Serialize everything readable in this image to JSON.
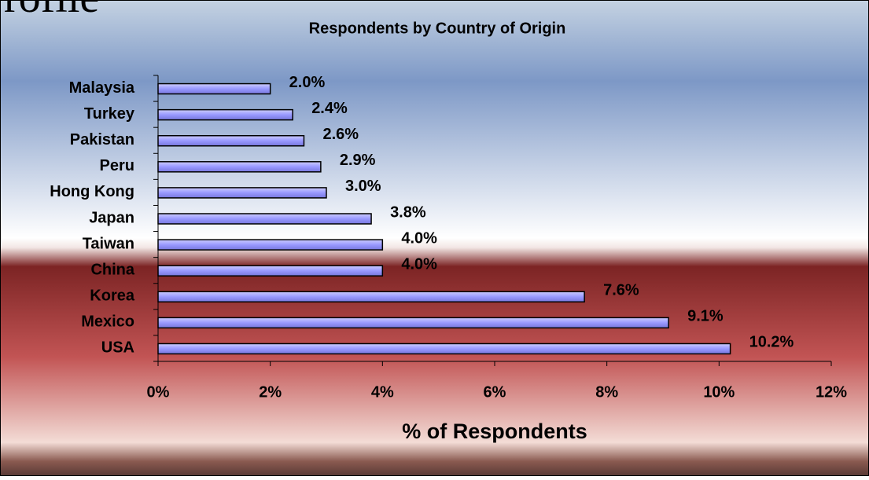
{
  "chart_data": {
    "type": "bar",
    "orientation": "horizontal",
    "annotation": "rofile",
    "title": "Respondents by Country of Origin",
    "x_label": "% of Respondents",
    "categories": [
      "Malaysia",
      "Turkey",
      "Pakistan",
      "Peru",
      "Hong Kong",
      "Japan",
      "Taiwan",
      "China",
      "Korea",
      "Mexico",
      "USA"
    ],
    "values": [
      2.0,
      2.4,
      2.6,
      2.9,
      3.0,
      3.8,
      4.0,
      4.0,
      7.6,
      9.1,
      10.2
    ],
    "value_labels": [
      "2.0%",
      "2.4%",
      "2.6%",
      "2.9%",
      "3.0%",
      "3.8%",
      "4.0%",
      "4.0%",
      "7.6%",
      "9.1%",
      "10.2%"
    ],
    "color": "#9999ff",
    "xlim": [
      0,
      12
    ],
    "xticks": [
      {
        "value": 0,
        "label": "0%"
      },
      {
        "value": 2,
        "label": "2%"
      },
      {
        "value": 4,
        "label": "4%"
      },
      {
        "value": 6,
        "label": "6%"
      },
      {
        "value": 8,
        "label": "8%"
      },
      {
        "value": 10,
        "label": "10%"
      },
      {
        "value": 12,
        "label": "12%"
      }
    ]
  }
}
